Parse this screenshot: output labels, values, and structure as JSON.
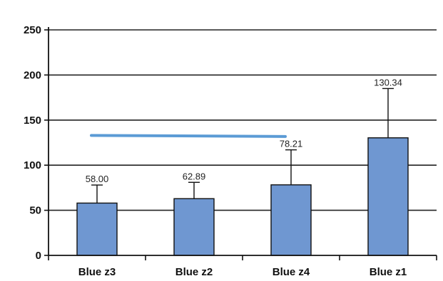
{
  "chart_data": {
    "type": "bar",
    "title": "",
    "xlabel": "",
    "ylabel": "",
    "ylim": [
      0,
      250
    ],
    "yticks": [
      0,
      50,
      100,
      150,
      200,
      250
    ],
    "ytick_labels": [
      "0",
      "50",
      "100",
      "150",
      "200",
      "250"
    ],
    "grid": true,
    "categories": [
      "Blue z3",
      "Blue z2",
      "Blue z4",
      "Blue z1"
    ],
    "values": [
      58.0,
      62.89,
      78.21,
      130.34
    ],
    "value_labels": [
      "58.00",
      "62.89",
      "78.21",
      "130.34"
    ],
    "error_upper": [
      78,
      81,
      117,
      185
    ],
    "reference_line": {
      "y": 133,
      "x_start_category": 0,
      "x_end_category": 2
    },
    "colors": {
      "bar_fill": "#6f97d1",
      "bar_stroke": "#111111",
      "reference_line": "#5b9bd5",
      "grid": "#222222"
    }
  }
}
